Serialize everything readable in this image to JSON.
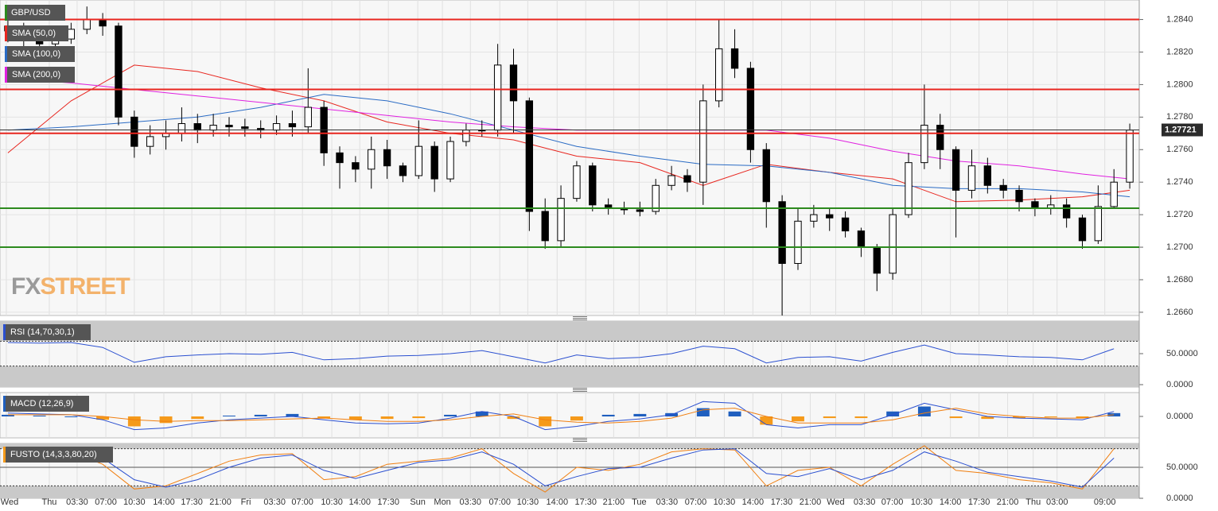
{
  "chart_data": [
    {
      "type": "candlestick",
      "title": "GBP/USD",
      "watermark": [
        "FX",
        "STREET"
      ],
      "watermark_colors": [
        "#9a9a9a",
        "#f3b26b"
      ],
      "open": [
        1.2836,
        1.2833,
        1.283,
        1.2825,
        1.2828,
        1.2834,
        1.284,
        1.2836,
        1.278,
        1.2762,
        1.2768,
        1.277,
        1.2776,
        1.2772,
        1.2775,
        1.2774,
        1.2773,
        1.2772,
        1.2776,
        1.2774,
        1.2786,
        1.2758,
        1.2752,
        1.2748,
        1.276,
        1.275,
        1.2744,
        1.2762,
        1.2742,
        1.2765,
        1.2772,
        1.2772,
        1.2812,
        1.279,
        1.2722,
        1.2704,
        1.273,
        1.275,
        1.2726,
        1.2724,
        1.2723,
        1.2722,
        1.2738,
        1.2744,
        1.274,
        1.279,
        1.2822,
        1.281,
        1.276,
        1.2728,
        1.269,
        1.2716,
        1.272,
        1.2718,
        1.271,
        1.27,
        1.2684,
        1.272,
        1.2752,
        1.2775,
        1.276,
        1.2735,
        1.275,
        1.2738,
        1.2735,
        1.2728,
        1.2724,
        1.2726,
        1.2718,
        1.2704,
        1.2725,
        1.274
      ],
      "high": [
        1.2842,
        1.2838,
        1.2834,
        1.2832,
        1.2838,
        1.2848,
        1.2844,
        1.2838,
        1.2784,
        1.2775,
        1.2778,
        1.2786,
        1.2782,
        1.2782,
        1.278,
        1.2779,
        1.2778,
        1.2781,
        1.2784,
        1.281,
        1.279,
        1.2762,
        1.2756,
        1.2768,
        1.2766,
        1.2752,
        1.2778,
        1.2765,
        1.2768,
        1.2776,
        1.2778,
        1.2825,
        1.2822,
        1.2792,
        1.273,
        1.2738,
        1.2753,
        1.2752,
        1.273,
        1.2728,
        1.2728,
        1.2742,
        1.275,
        1.2748,
        1.28,
        1.284,
        1.2834,
        1.2814,
        1.2764,
        1.2732,
        1.2724,
        1.2726,
        1.2724,
        1.2722,
        1.2712,
        1.2702,
        1.2724,
        1.2758,
        1.28,
        1.2782,
        1.2762,
        1.276,
        1.2755,
        1.2742,
        1.2738,
        1.273,
        1.2732,
        1.273,
        1.272,
        1.2738,
        1.2748,
        1.2776
      ],
      "low": [
        1.2826,
        1.2822,
        1.282,
        1.2821,
        1.2825,
        1.2831,
        1.283,
        1.2775,
        1.2755,
        1.2757,
        1.276,
        1.2765,
        1.2764,
        1.2768,
        1.2768,
        1.2768,
        1.2767,
        1.2769,
        1.2768,
        1.277,
        1.275,
        1.2736,
        1.274,
        1.2736,
        1.2742,
        1.274,
        1.2742,
        1.2734,
        1.274,
        1.2762,
        1.2768,
        1.2768,
        1.277,
        1.271,
        1.2699,
        1.27,
        1.2728,
        1.2722,
        1.272,
        1.272,
        1.2719,
        1.272,
        1.2735,
        1.2734,
        1.2726,
        1.2786,
        1.2804,
        1.2752,
        1.2712,
        1.2658,
        1.2686,
        1.2712,
        1.271,
        1.2706,
        1.2694,
        1.2673,
        1.268,
        1.2718,
        1.2748,
        1.2748,
        1.2706,
        1.273,
        1.2733,
        1.273,
        1.2722,
        1.2719,
        1.272,
        1.2712,
        1.2699,
        1.2702,
        1.2724,
        1.2736
      ],
      "close": [
        1.2833,
        1.283,
        1.2825,
        1.2828,
        1.2834,
        1.284,
        1.2836,
        1.278,
        1.2762,
        1.2768,
        1.277,
        1.2776,
        1.2772,
        1.2775,
        1.2774,
        1.2773,
        1.2772,
        1.2776,
        1.2774,
        1.2786,
        1.2758,
        1.2752,
        1.2748,
        1.276,
        1.275,
        1.2744,
        1.2762,
        1.2742,
        1.2765,
        1.2772,
        1.2772,
        1.2812,
        1.279,
        1.2722,
        1.2704,
        1.273,
        1.275,
        1.2726,
        1.2724,
        1.2723,
        1.2722,
        1.2738,
        1.2744,
        1.274,
        1.279,
        1.2822,
        1.281,
        1.276,
        1.2728,
        1.269,
        1.2716,
        1.272,
        1.2718,
        1.271,
        1.27,
        1.2684,
        1.272,
        1.2752,
        1.2775,
        1.276,
        1.2735,
        1.275,
        1.2738,
        1.2735,
        1.2728,
        1.2724,
        1.2726,
        1.2718,
        1.2704,
        1.2725,
        1.274,
        1.2772
      ],
      "sma_x": [
        0,
        4,
        8,
        12,
        16,
        20,
        24,
        28,
        32,
        36,
        40,
        44,
        48,
        52,
        56,
        60,
        64,
        68,
        71
      ],
      "series": [
        {
          "name": "SMA (50,0)",
          "color": "#e8261f",
          "values": [
            1.2758,
            1.279,
            1.2812,
            1.2808,
            1.2798,
            1.279,
            1.2777,
            1.277,
            1.2766,
            1.2756,
            1.2752,
            1.2738,
            1.2751,
            1.2746,
            1.2742,
            1.2728,
            1.2729,
            1.2731,
            1.2735
          ]
        },
        {
          "name": "SMA (100,0)",
          "color": "#2a6bc4",
          "values": [
            1.2772,
            1.2774,
            1.2777,
            1.278,
            1.2786,
            1.2794,
            1.279,
            1.2782,
            1.2772,
            1.2762,
            1.2756,
            1.2751,
            1.275,
            1.2746,
            1.2738,
            1.2736,
            1.2736,
            1.2734,
            1.2731
          ]
        },
        {
          "name": "SMA (200,0)",
          "color": "#e020e0",
          "values": [
            1.2804,
            1.2801,
            1.2797,
            1.2793,
            1.2789,
            1.2785,
            1.2781,
            1.2777,
            1.2774,
            1.2772,
            1.2772,
            1.2772,
            1.2772,
            1.2767,
            1.2759,
            1.2753,
            1.275,
            1.2745,
            1.2742
          ]
        }
      ],
      "levels": [
        {
          "value": 1.284,
          "color": "#e8261f"
        },
        {
          "value": 1.2797,
          "color": "#e8261f"
        },
        {
          "value": 1.277,
          "color": "#e8261f"
        },
        {
          "value": 1.2724,
          "color": "#2c8a1e"
        },
        {
          "value": 1.27,
          "color": "#2c8a1e"
        }
      ],
      "last_price": 1.27721,
      "ylim": [
        1.2658,
        1.2852
      ],
      "yticks": [
        {
          "value": 1.266,
          "label": "1.2660"
        },
        {
          "value": 1.268,
          "label": "1.2680"
        },
        {
          "value": 1.27,
          "label": "1.2700"
        },
        {
          "value": 1.272,
          "label": "1.2720"
        },
        {
          "value": 1.274,
          "label": "1.2740"
        },
        {
          "value": 1.276,
          "label": "1.2760"
        },
        {
          "value": 1.278,
          "label": "1.2780"
        },
        {
          "value": 1.28,
          "label": "1.2800"
        },
        {
          "value": 1.282,
          "label": "1.2820"
        },
        {
          "value": 1.284,
          "label": "1.2840"
        }
      ]
    },
    {
      "type": "line",
      "title": "RSI (14,70,30,1)",
      "color": "#2a4fd0",
      "x": [
        0,
        2,
        4,
        6,
        8,
        10,
        12,
        14,
        16,
        18,
        20,
        22,
        24,
        26,
        28,
        30,
        32,
        34,
        36,
        38,
        40,
        42,
        44,
        46,
        48,
        50,
        52,
        54,
        56,
        58,
        60,
        62,
        64,
        66,
        68,
        70
      ],
      "values": [
        68,
        67,
        68,
        60,
        36,
        45,
        48,
        50,
        49,
        52,
        40,
        42,
        46,
        47,
        50,
        55,
        45,
        35,
        48,
        42,
        44,
        50,
        62,
        58,
        35,
        44,
        45,
        38,
        52,
        64,
        50,
        48,
        45,
        44,
        40,
        58
      ],
      "bands": [
        30,
        70
      ],
      "ylim": [
        0,
        100
      ],
      "yticks": [
        {
          "value": 50,
          "label": "50.0000"
        },
        {
          "value": 0,
          "label": "0.0000"
        }
      ]
    },
    {
      "type": "macd",
      "title": "MACD (12,26,9)",
      "colors": {
        "up": "#1f5fbf",
        "down": "#f59a1b"
      },
      "x": [
        0,
        2,
        4,
        6,
        8,
        10,
        12,
        14,
        16,
        18,
        20,
        22,
        24,
        26,
        28,
        30,
        32,
        34,
        36,
        38,
        40,
        42,
        44,
        46,
        48,
        50,
        52,
        54,
        56,
        58,
        60,
        62,
        64,
        66,
        68,
        70
      ],
      "histogram": [
        0.0002,
        0.0001,
        0.0,
        -0.0004,
        -0.0012,
        -0.0008,
        -0.0003,
        0.0001,
        0.0002,
        0.0003,
        -0.0002,
        -0.0004,
        -0.0003,
        -0.0002,
        0.0002,
        0.0006,
        -0.0003,
        -0.0012,
        -0.0005,
        0.0002,
        0.0003,
        0.0004,
        0.001,
        0.0006,
        -0.001,
        -0.0006,
        -0.0002,
        -0.0002,
        0.0006,
        0.0012,
        -0.0002,
        -0.0003,
        -0.0002,
        -0.0001,
        -0.0002,
        0.0004
      ],
      "series": [
        {
          "color": "#2a4fd0",
          "values": [
            0.0004,
            0.0003,
            0.0002,
            -0.0004,
            -0.0016,
            -0.0014,
            -0.0008,
            -0.0004,
            -0.0002,
            0.0,
            -0.0004,
            -0.0008,
            -0.0009,
            -0.0008,
            -0.0002,
            0.0006,
            0.0,
            -0.0016,
            -0.0012,
            -0.0006,
            -0.0003,
            0.0002,
            0.0018,
            0.0016,
            -0.001,
            -0.0014,
            -0.001,
            -0.001,
            0.0002,
            0.0016,
            0.0008,
            0.0,
            -0.0002,
            -0.0003,
            -0.0004,
            0.0006
          ]
        },
        {
          "color": "#f07f10",
          "values": [
            0.0002,
            0.0002,
            0.0002,
            0.0,
            -0.0004,
            -0.0006,
            -0.0005,
            -0.0005,
            -0.0004,
            -0.0003,
            -0.0002,
            -0.0004,
            -0.0006,
            -0.0006,
            -0.0004,
            0.0,
            0.0003,
            -0.0004,
            -0.0007,
            -0.0008,
            -0.0006,
            -0.0002,
            0.0008,
            0.001,
            0.0,
            -0.0008,
            -0.0008,
            -0.0008,
            -0.0004,
            0.0004,
            0.001,
            0.0003,
            0.0,
            -0.0002,
            -0.0002,
            0.0002
          ]
        }
      ],
      "ylim": [
        -0.0026,
        0.0026
      ],
      "yticks": [
        {
          "value": 0,
          "label": "0.0000"
        }
      ]
    },
    {
      "type": "stochastic",
      "title": "FUSTO (14,3,3,80,20)",
      "title_color": "#f59a1b",
      "x": [
        0,
        2,
        4,
        6,
        8,
        10,
        12,
        14,
        16,
        18,
        20,
        22,
        24,
        26,
        28,
        30,
        32,
        34,
        36,
        38,
        40,
        42,
        44,
        46,
        48,
        50,
        52,
        54,
        56,
        58,
        60,
        62,
        64,
        66,
        68,
        70
      ],
      "series": [
        {
          "color": "#f07f10",
          "values": [
            80,
            70,
            75,
            55,
            15,
            20,
            40,
            60,
            70,
            72,
            30,
            35,
            55,
            60,
            65,
            80,
            40,
            10,
            50,
            45,
            55,
            75,
            80,
            78,
            20,
            45,
            50,
            20,
            55,
            85,
            45,
            40,
            30,
            25,
            15,
            80
          ]
        },
        {
          "color": "#2a4fd0",
          "values": [
            78,
            74,
            73,
            65,
            30,
            18,
            30,
            50,
            65,
            70,
            45,
            32,
            45,
            58,
            62,
            75,
            55,
            20,
            35,
            48,
            50,
            65,
            78,
            80,
            40,
            35,
            48,
            30,
            45,
            75,
            60,
            42,
            35,
            28,
            18,
            65
          ]
        }
      ],
      "bands": [
        20,
        80
      ],
      "ylim": [
        0,
        86
      ],
      "yticks": [
        {
          "value": 50,
          "label": "50.0000"
        },
        {
          "value": 0,
          "label": "0.0000"
        }
      ],
      "xlim": [
        -0.5,
        71.6
      ],
      "xticks": [
        {
          "value": -0.1,
          "label": "Wed"
        },
        {
          "value": 2.62,
          "label": "Thu"
        },
        {
          "value": 4.38,
          "label": "03:30"
        },
        {
          "value": 6.2,
          "label": "07:00"
        },
        {
          "value": 8.0,
          "label": "10:30"
        },
        {
          "value": 9.87,
          "label": "14:00"
        },
        {
          "value": 11.64,
          "label": "17:30"
        },
        {
          "value": 13.45,
          "label": "21:00"
        },
        {
          "value": 15.06,
          "label": "Fri"
        },
        {
          "value": 16.88,
          "label": "03:30"
        },
        {
          "value": 18.64,
          "label": "07:00"
        },
        {
          "value": 20.5,
          "label": "10:30"
        },
        {
          "value": 22.27,
          "label": "14:00"
        },
        {
          "value": 24.08,
          "label": "17:30"
        },
        {
          "value": 25.94,
          "label": "Sun"
        },
        {
          "value": 27.5,
          "label": "Mon"
        },
        {
          "value": 29.27,
          "label": "03:30"
        },
        {
          "value": 31.13,
          "label": "07:00"
        },
        {
          "value": 32.9,
          "label": "10:30"
        },
        {
          "value": 34.76,
          "label": "14:00"
        },
        {
          "value": 36.57,
          "label": "17:30"
        },
        {
          "value": 38.34,
          "label": "21:00"
        },
        {
          "value": 39.95,
          "label": "Tue"
        },
        {
          "value": 41.71,
          "label": "03:30"
        },
        {
          "value": 43.53,
          "label": "07:00"
        },
        {
          "value": 45.34,
          "label": "10:30"
        },
        {
          "value": 47.15,
          "label": "14:00"
        },
        {
          "value": 48.97,
          "label": "17:30"
        },
        {
          "value": 50.78,
          "label": "21:00"
        },
        {
          "value": 52.39,
          "label": "Wed"
        },
        {
          "value": 54.21,
          "label": "03:30"
        },
        {
          "value": 55.97,
          "label": "07:00"
        },
        {
          "value": 57.83,
          "label": "10:30"
        },
        {
          "value": 59.65,
          "label": "14:00"
        },
        {
          "value": 61.46,
          "label": "17:30"
        },
        {
          "value": 63.27,
          "label": "21:00"
        },
        {
          "value": 64.89,
          "label": "Thu"
        },
        {
          "value": 66.4,
          "label": "03:00"
        },
        {
          "value": 69.42,
          "label": "09:00"
        }
      ]
    }
  ]
}
